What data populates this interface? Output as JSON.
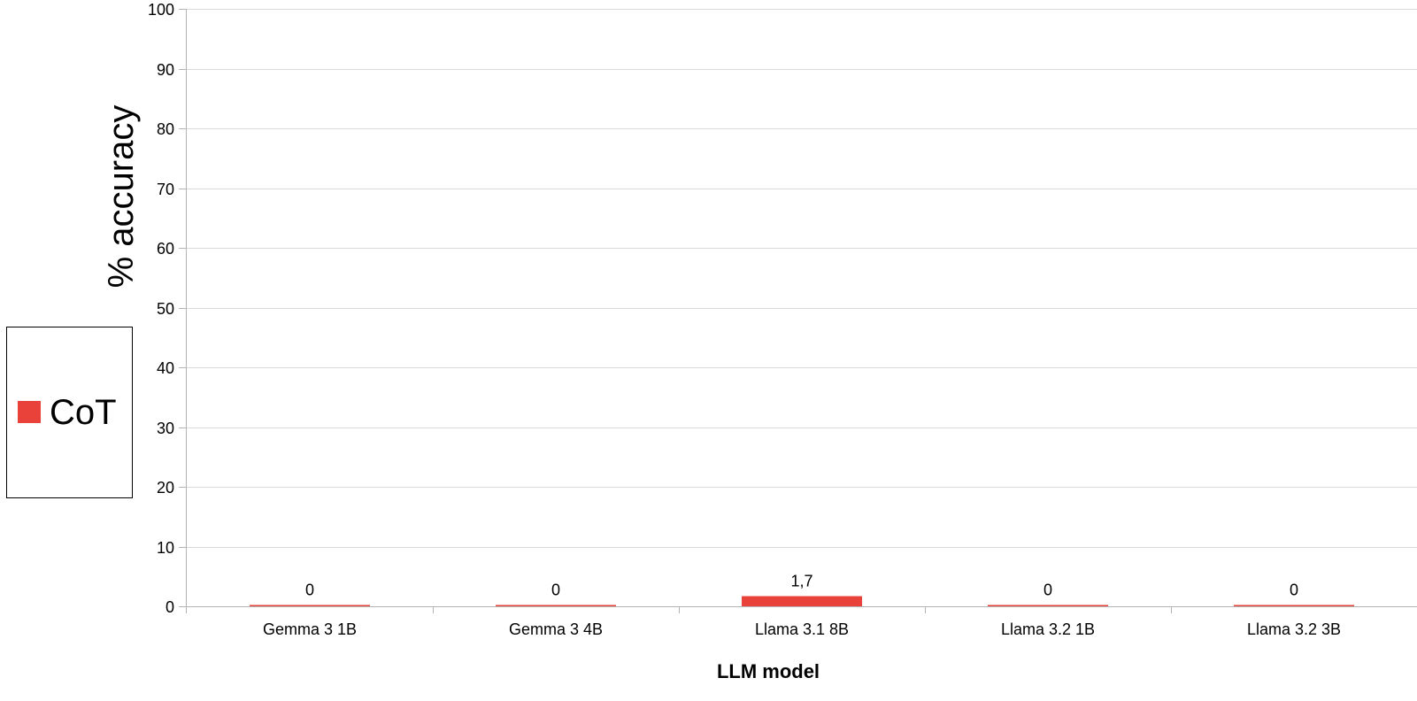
{
  "chart_data": {
    "type": "bar",
    "title": "",
    "xlabel": "LLM model",
    "ylabel": "% accuracy",
    "categories": [
      "Gemma 3 1B",
      "Gemma 3 4B",
      "Llama 3.1 8B",
      "Llama 3.2 1B",
      "Llama 3.2 3B"
    ],
    "series": [
      {
        "name": "CoT",
        "color": "#e8423a",
        "values": [
          0,
          0,
          1.7,
          0,
          0
        ],
        "data_labels": [
          "0",
          "0",
          "1,7",
          "0",
          "0"
        ]
      }
    ],
    "ylim": [
      0,
      100
    ],
    "yticks": [
      0,
      10,
      20,
      30,
      40,
      50,
      60,
      70,
      80,
      90,
      100
    ],
    "grid": true,
    "legend_position": "left"
  }
}
